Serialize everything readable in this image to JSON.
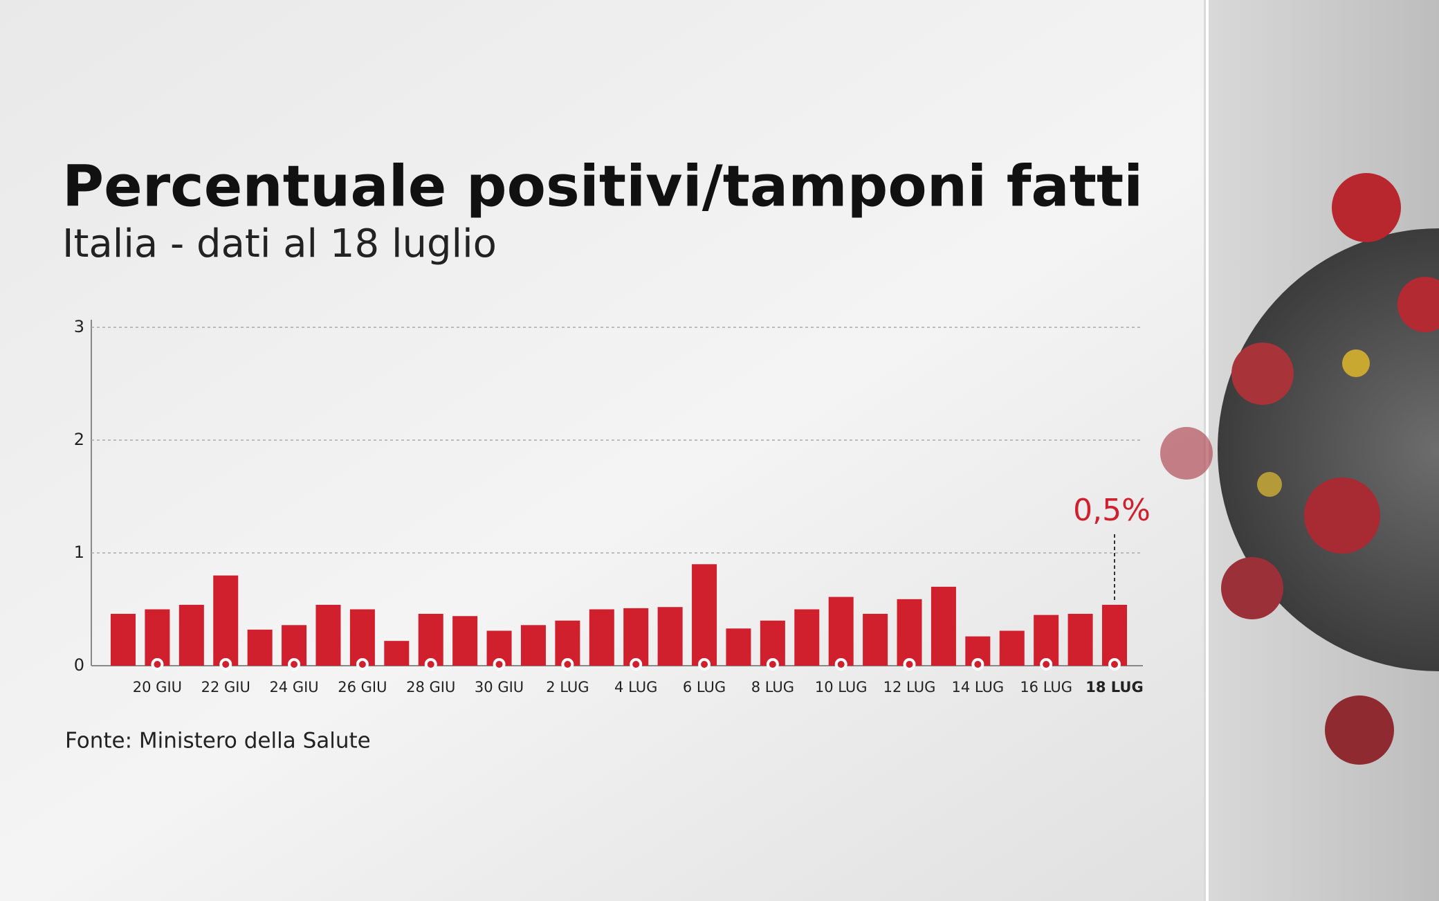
{
  "chart_data": {
    "type": "bar",
    "title": "Percentuale positivi/tamponi fatti",
    "subtitle": "Italia - dati al 18 luglio",
    "source": "Fonte: Ministero della Salute",
    "categories": [
      null,
      "20 GIU",
      null,
      "22 GIU",
      null,
      "24 GIU",
      null,
      "26 GIU",
      null,
      "28 GIU",
      null,
      "30 GIU",
      null,
      "2 LUG",
      null,
      "4 LUG",
      null,
      "6 LUG",
      null,
      "8 LUG",
      null,
      "10 LUG",
      null,
      "12 LUG",
      null,
      "14 LUG",
      null,
      "16 LUG",
      null,
      "18 LUG"
    ],
    "values": [
      0.46,
      0.5,
      0.54,
      0.8,
      0.32,
      0.36,
      0.54,
      0.5,
      0.22,
      0.46,
      0.44,
      0.31,
      0.36,
      0.4,
      0.5,
      0.51,
      0.52,
      0.9,
      0.33,
      0.4,
      0.5,
      0.61,
      0.46,
      0.59,
      0.7,
      0.26,
      0.31,
      0.45,
      0.46,
      0.54
    ],
    "value_labels": [
      null,
      null,
      null,
      null,
      null,
      null,
      null,
      null,
      null,
      null,
      null,
      null,
      null,
      null,
      null,
      null,
      null,
      null,
      null,
      null,
      null,
      null,
      null,
      null,
      null,
      null,
      null,
      null,
      null,
      "0,5%"
    ],
    "color": "#d0202e",
    "ylim": [
      0,
      3
    ],
    "yticks": [
      0,
      1,
      2,
      3
    ],
    "grid": true
  }
}
